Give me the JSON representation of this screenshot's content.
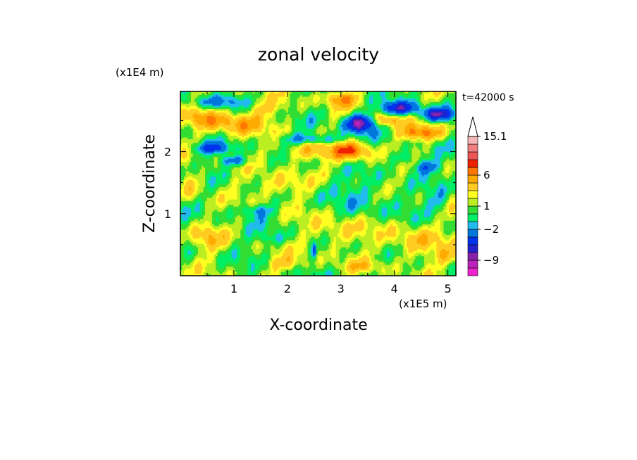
{
  "chart_data": {
    "type": "heatmap",
    "title": "zonal velocity",
    "xlabel": "X-coordinate",
    "ylabel": "Z-coordinate",
    "x_scale_label": "(x1E5 m)",
    "y_scale_label": "(x1E4 m)",
    "time_label": "t=42000 s",
    "xlim": [
      0,
      5.15
    ],
    "ylim": [
      0,
      2.97
    ],
    "x_ticks": [
      1,
      2,
      3,
      4,
      5
    ],
    "y_ticks": [
      1,
      2
    ],
    "x_tick_labels": [
      "1",
      "2",
      "3",
      "4",
      "5"
    ],
    "y_tick_labels": [
      "1",
      "2"
    ],
    "colorbar": {
      "levels": [
        -12,
        -10.5,
        -9,
        -7.5,
        -6,
        -4,
        -2,
        -1,
        0,
        1,
        2,
        3,
        4.5,
        6,
        7.5,
        9,
        10.5,
        12,
        15.1
      ],
      "colors": [
        "#ee22cc",
        "#bb22bb",
        "#8822aa",
        "#2222cc",
        "#0033ee",
        "#0077dd",
        "#22bbee",
        "#00ee66",
        "#33dd33",
        "#bbee22",
        "#ffff22",
        "#ffcc22",
        "#ffaa00",
        "#ff7700",
        "#ee2200",
        "#ee5555",
        "#f08080",
        "#f4b6b6",
        "#ffffff"
      ],
      "tick_labels": [
        {
          "value": 15.1,
          "label": "15.1"
        },
        {
          "value": 6,
          "label": "6"
        },
        {
          "value": 1,
          "label": "1"
        },
        {
          "value": -2,
          "label": "−2"
        },
        {
          "value": -9,
          "label": "−9"
        }
      ],
      "extend": "max"
    },
    "features": [
      {
        "x": 1.0,
        "z": 2.45,
        "amp": 4.5,
        "sx": 0.55,
        "sz": 0.18
      },
      {
        "x": 0.4,
        "z": 2.55,
        "amp": 3.0,
        "sx": 0.3,
        "sz": 0.15
      },
      {
        "x": 0.6,
        "z": 2.05,
        "amp": -5.0,
        "sx": 0.35,
        "sz": 0.09
      },
      {
        "x": 1.0,
        "z": 1.85,
        "amp": -4.0,
        "sx": 0.3,
        "sz": 0.08
      },
      {
        "x": 0.7,
        "z": 2.8,
        "amp": -3.0,
        "sx": 0.5,
        "sz": 0.1
      },
      {
        "x": 1.6,
        "z": 2.7,
        "amp": 2.0,
        "sx": 0.4,
        "sz": 0.15
      },
      {
        "x": 1.9,
        "z": 1.45,
        "amp": 3.0,
        "sx": 0.5,
        "sz": 0.2
      },
      {
        "x": 2.5,
        "z": 2.2,
        "amp": -4.0,
        "sx": 0.6,
        "sz": 0.08
      },
      {
        "x": 2.4,
        "z": 2.0,
        "amp": 3.5,
        "sx": 0.5,
        "sz": 0.15
      },
      {
        "x": 3.0,
        "z": 2.85,
        "amp": 5.0,
        "sx": 0.3,
        "sz": 0.12
      },
      {
        "x": 3.35,
        "z": 2.45,
        "amp": -10.0,
        "sx": 0.25,
        "sz": 0.14
      },
      {
        "x": 3.2,
        "z": 2.0,
        "amp": 6.0,
        "sx": 0.35,
        "sz": 0.15
      },
      {
        "x": 4.1,
        "z": 2.7,
        "amp": -7.0,
        "sx": 0.35,
        "sz": 0.1
      },
      {
        "x": 4.5,
        "z": 2.3,
        "amp": 5.5,
        "sx": 0.4,
        "sz": 0.12
      },
      {
        "x": 4.8,
        "z": 2.6,
        "amp": -8.0,
        "sx": 0.3,
        "sz": 0.1
      },
      {
        "x": 3.9,
        "z": 2.5,
        "amp": 4.5,
        "sx": 0.25,
        "sz": 0.1
      },
      {
        "x": 4.6,
        "z": 1.75,
        "amp": -4.0,
        "sx": 0.25,
        "sz": 0.1
      },
      {
        "x": 4.2,
        "z": 1.9,
        "amp": -2.5,
        "sx": 0.3,
        "sz": 0.1
      },
      {
        "x": 2.9,
        "z": 1.4,
        "amp": -1.5,
        "sx": 0.6,
        "sz": 0.2
      },
      {
        "x": 3.8,
        "z": 1.2,
        "amp": -1.5,
        "sx": 0.6,
        "sz": 0.25
      },
      {
        "x": 1.4,
        "z": 1.05,
        "amp": -3.0,
        "sx": 0.3,
        "sz": 0.1
      },
      {
        "x": 2.9,
        "z": 0.7,
        "amp": 2.5,
        "sx": 0.5,
        "sz": 0.25
      },
      {
        "x": 4.4,
        "z": 0.55,
        "amp": 3.0,
        "sx": 0.5,
        "sz": 0.3
      },
      {
        "x": 0.5,
        "z": 0.6,
        "amp": 3.0,
        "sx": 0.3,
        "sz": 0.2
      },
      {
        "x": 2.0,
        "z": 0.2,
        "amp": 2.5,
        "sx": 0.4,
        "sz": 0.12
      },
      {
        "x": 1.7,
        "z": 0.6,
        "amp": -2.0,
        "sx": 0.3,
        "sz": 0.1
      },
      {
        "x": 3.4,
        "z": 0.15,
        "amp": 2.0,
        "sx": 0.4,
        "sz": 0.1
      },
      {
        "x": 2.5,
        "z": 0.4,
        "amp": -5.0,
        "sx": 0.04,
        "sz": 0.12
      },
      {
        "x": 4.8,
        "z": 1.2,
        "amp": -2.0,
        "sx": 0.2,
        "sz": 0.2
      },
      {
        "x": 0.2,
        "z": 1.5,
        "amp": 2.5,
        "sx": 0.2,
        "sz": 0.3
      },
      {
        "x": 5.0,
        "z": 0.3,
        "amp": 2.5,
        "sx": 0.2,
        "sz": 0.15
      }
    ]
  }
}
